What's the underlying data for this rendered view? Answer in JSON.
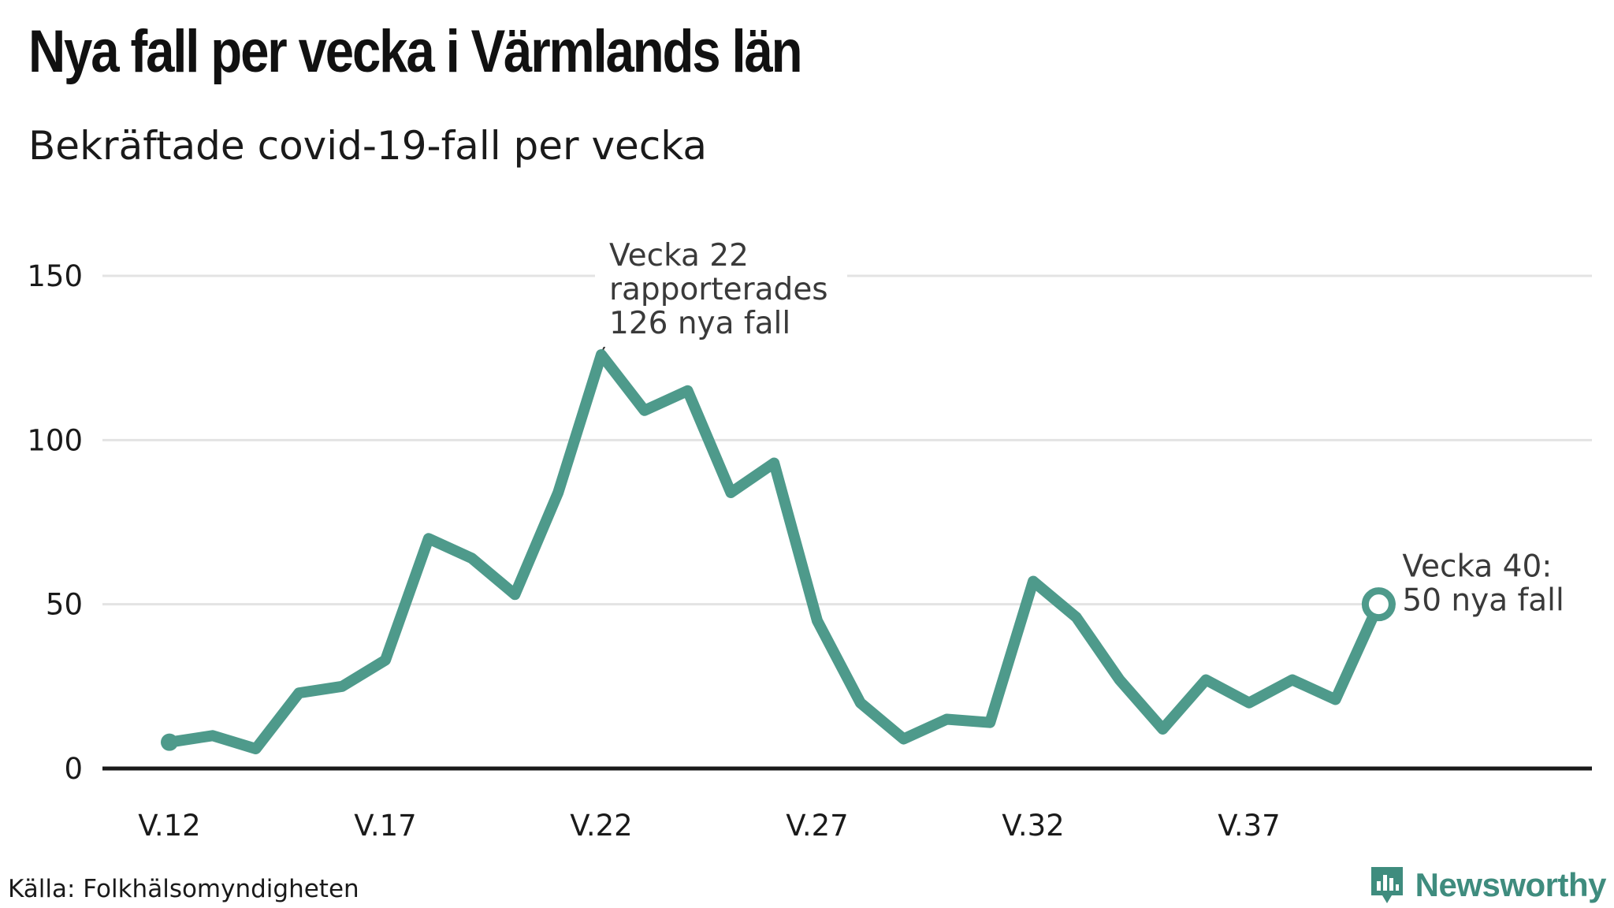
{
  "header": {
    "title": "Nya fall per vecka i Värmlands län",
    "subtitle": "Bekräftade covid-19-fall per vecka"
  },
  "footer": {
    "source": "Källa: Folkhälsomyndigheten",
    "brand": "Newsworthy"
  },
  "colors": {
    "line": "#4e9a8b",
    "grid": "#e3e3e3",
    "axis": "#1a1a1a",
    "brand": "#3f8c7e"
  },
  "chart_data": {
    "type": "line",
    "title": "Nya fall per vecka i Värmlands län",
    "subtitle": "Bekräftade covid-19-fall per vecka",
    "xlabel": "",
    "ylabel": "",
    "ylim": [
      0,
      150
    ],
    "yticks": [
      0,
      50,
      100,
      150
    ],
    "x": [
      12,
      13,
      14,
      15,
      16,
      17,
      18,
      19,
      20,
      21,
      22,
      23,
      24,
      25,
      26,
      27,
      28,
      29,
      30,
      31,
      32,
      33,
      34,
      35,
      36,
      37,
      38,
      39,
      40
    ],
    "xticks": [
      12,
      17,
      22,
      27,
      32,
      37
    ],
    "xtick_labels": [
      "V.12",
      "V.17",
      "V.22",
      "V.27",
      "V.32",
      "V.37"
    ],
    "series": [
      {
        "name": "Nya fall",
        "values": [
          8,
          10,
          6,
          23,
          25,
          33,
          70,
          64,
          53,
          84,
          126,
          109,
          115,
          84,
          93,
          45,
          20,
          9,
          15,
          14,
          57,
          46,
          27,
          12,
          27,
          20,
          27,
          21,
          50
        ]
      }
    ],
    "annotations": [
      {
        "week": 22,
        "value": 126,
        "lines": [
          "Vecka 22",
          "rapporterades",
          "126 nya fall"
        ]
      },
      {
        "week": 40,
        "value": 50,
        "lines": [
          "Vecka 40:",
          "50 nya fall"
        ]
      }
    ],
    "grid": true
  }
}
